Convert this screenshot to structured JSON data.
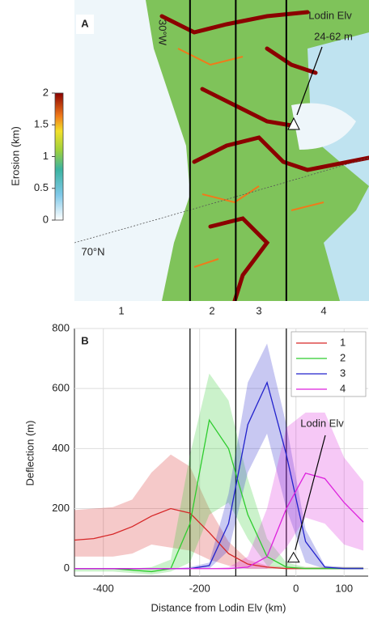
{
  "panel_a": {
    "label": "A",
    "annotation": "Lodin Elv",
    "annotation_value": "24-62 m",
    "lon_label": "30°W",
    "lat_label": "70°N",
    "regions": [
      "1",
      "2",
      "3",
      "4"
    ],
    "colorbar": {
      "label": "Erosion (km)",
      "lim": [
        0,
        2
      ],
      "ticks": [
        0,
        0.5,
        1,
        1.5,
        2
      ]
    }
  },
  "chart_data": {
    "type": "line",
    "panel_label": "B",
    "x_label": "Distance from Lodin Elv (km)",
    "y_label": "Deflection (m)",
    "xlim": [
      -460,
      150
    ],
    "ylim": [
      -25,
      800
    ],
    "xticks": [
      -400,
      -200,
      0,
      100
    ],
    "yticks": [
      0,
      200,
      400,
      600,
      800
    ],
    "grid": true,
    "boundaries": [
      -220,
      -125,
      -20
    ],
    "x": [
      -460,
      -420,
      -380,
      -340,
      -300,
      -260,
      -220,
      -180,
      -140,
      -100,
      -60,
      -20,
      20,
      60,
      100,
      140
    ],
    "series": [
      {
        "name": "1",
        "color": "#d62728",
        "values": [
          95,
          100,
          115,
          140,
          175,
          200,
          185,
          120,
          50,
          15,
          5,
          0,
          0,
          0,
          0,
          0
        ],
        "upper": [
          195,
          200,
          205,
          230,
          320,
          380,
          340,
          200,
          90,
          30,
          10,
          5,
          5,
          5,
          5,
          5
        ],
        "lower": [
          40,
          40,
          40,
          50,
          80,
          70,
          60,
          30,
          10,
          0,
          0,
          0,
          0,
          0,
          0,
          0
        ]
      },
      {
        "name": "2",
        "color": "#2ecc2e",
        "values": [
          0,
          0,
          0,
          -5,
          -10,
          0,
          150,
          495,
          400,
          180,
          40,
          5,
          0,
          0,
          0,
          0
        ],
        "upper": [
          0,
          0,
          0,
          0,
          5,
          30,
          380,
          650,
          560,
          300,
          100,
          20,
          5,
          5,
          5,
          5
        ],
        "lower": [
          -10,
          -10,
          -10,
          -15,
          -20,
          -10,
          20,
          180,
          220,
          100,
          10,
          0,
          0,
          0,
          0,
          0
        ]
      },
      {
        "name": "3",
        "color": "#2222cc",
        "values": [
          0,
          0,
          0,
          0,
          0,
          0,
          0,
          10,
          150,
          480,
          620,
          380,
          90,
          5,
          0,
          0
        ],
        "upper": [
          0,
          0,
          0,
          0,
          0,
          0,
          5,
          20,
          250,
          620,
          750,
          480,
          130,
          10,
          5,
          5
        ],
        "lower": [
          0,
          0,
          0,
          0,
          0,
          0,
          0,
          0,
          60,
          320,
          450,
          200,
          20,
          0,
          0,
          0
        ]
      },
      {
        "name": "4",
        "color": "#dd22dd",
        "values": [
          0,
          0,
          0,
          0,
          0,
          0,
          0,
          0,
          0,
          5,
          40,
          200,
          318,
          300,
          220,
          155
        ],
        "upper": [
          0,
          0,
          0,
          0,
          0,
          0,
          0,
          0,
          5,
          40,
          200,
          470,
          520,
          520,
          370,
          290
        ],
        "lower": [
          0,
          0,
          0,
          0,
          0,
          0,
          0,
          0,
          0,
          0,
          0,
          70,
          170,
          150,
          80,
          60
        ]
      }
    ],
    "annotation": {
      "text": "Lodin Elv",
      "x": -5,
      "y": 35
    }
  }
}
